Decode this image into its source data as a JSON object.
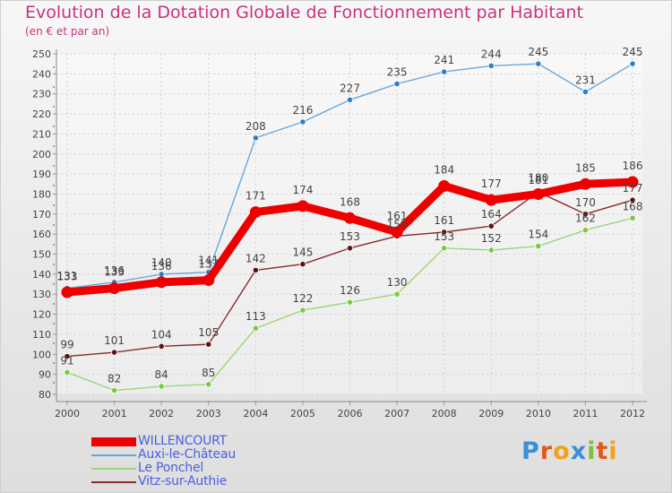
{
  "title": "Evolution de la Dotation Globale de Fonctionnement par Habitant",
  "subtitle": "(en € et par an)",
  "brand": {
    "letters": [
      "P",
      "r",
      "o",
      "x",
      "i",
      "t",
      "i"
    ],
    "colors": [
      "#3b8fd6",
      "#e05a1f",
      "#f0a21a",
      "#3b8fd6",
      "#7ec13a",
      "#e05a1f",
      "#f0a21a"
    ]
  },
  "chart_data": {
    "type": "line",
    "title": "Evolution de la Dotation Globale de Fonctionnement par Habitant",
    "subtitle": "(en € et par an)",
    "x": [
      "2000",
      "2001",
      "2002",
      "2003",
      "2004",
      "2005",
      "2006",
      "2007",
      "2008",
      "2009",
      "2010",
      "2011",
      "2012"
    ],
    "ylim": [
      80,
      250
    ],
    "yticks": [
      80,
      90,
      100,
      110,
      120,
      130,
      140,
      150,
      160,
      170,
      180,
      190,
      200,
      210,
      220,
      230,
      240,
      250
    ],
    "grid": true,
    "legend_position": "bottom-left",
    "series": [
      {
        "name": "WILLENCOURT",
        "color": "#ee0000",
        "emphasis": true,
        "values": [
          131,
          133,
          136,
          137,
          171,
          174,
          168,
          161,
          184,
          177,
          180,
          185,
          186
        ],
        "labels": [
          "131",
          "133",
          "136",
          "137",
          "171",
          "174",
          "168",
          "161",
          "184",
          "177",
          "180",
          "185",
          "186"
        ]
      },
      {
        "name": "Auxi-le-Château",
        "color": "#6aa7d8",
        "marker": "#2f7fc4",
        "values": [
          133,
          136,
          140,
          141,
          208,
          216,
          227,
          235,
          241,
          244,
          245,
          231,
          245
        ],
        "labels": [
          "133",
          "136",
          "140",
          "141",
          "208",
          "216",
          "227",
          "235",
          "241",
          "244",
          "245",
          "231",
          "245"
        ]
      },
      {
        "name": "Le Ponchel",
        "color": "#9ad67a",
        "marker": "#7ac943",
        "values": [
          91,
          82,
          84,
          85,
          113,
          122,
          126,
          130,
          153,
          152,
          154,
          162,
          168
        ],
        "labels": [
          "91",
          "82",
          "84",
          "85",
          "113",
          "122",
          "126",
          "130",
          "153",
          "152",
          "154",
          "162",
          "168"
        ]
      },
      {
        "name": "Vitz-sur-Authie",
        "color": "#8a2a2a",
        "marker": "#5c1515",
        "values": [
          99,
          101,
          104,
          105,
          142,
          145,
          153,
          159,
          161,
          164,
          181,
          170,
          177
        ],
        "labels": [
          "99",
          "101",
          "104",
          "105",
          "142",
          "145",
          "153",
          "159",
          "161",
          "164",
          "181",
          "170",
          "177"
        ]
      }
    ]
  }
}
